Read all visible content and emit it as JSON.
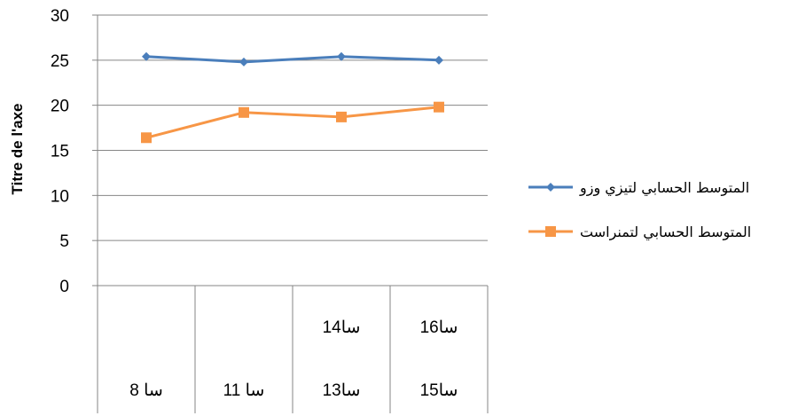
{
  "chart_data": {
    "type": "line",
    "ylabel": "Titre de l'axe",
    "xlabel": "",
    "ylim": [
      0,
      30
    ],
    "yticks": [
      0,
      5,
      10,
      15,
      20,
      25,
      30
    ],
    "grid": true,
    "legend_position": "right",
    "categories": [
      [
        "8 سا"
      ],
      [
        "11 سا"
      ],
      [
        "13سا",
        "14سا"
      ],
      [
        "15سا",
        "16سا"
      ]
    ],
    "series": [
      {
        "name": "المتوسط الحسابي لتيزي وزو",
        "values": [
          25.4,
          24.8,
          25.4,
          25.0
        ],
        "color": "#4A7EBB",
        "marker": "diamond"
      },
      {
        "name": "المتوسط الحسابي لتمنراست",
        "values": [
          16.4,
          19.2,
          18.7,
          19.8
        ],
        "color": "#F79646",
        "marker": "square"
      }
    ]
  }
}
